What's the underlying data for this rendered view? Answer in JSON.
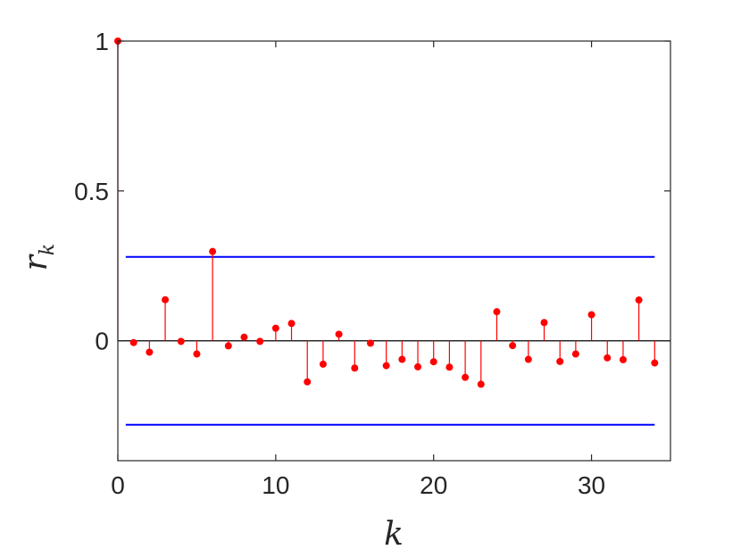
{
  "chart_data": {
    "type": "stem",
    "title": "",
    "xlabel": "k",
    "ylabel_base": "r",
    "ylabel_sub": "k",
    "xlim": [
      0,
      35
    ],
    "ylim": [
      -0.4,
      1.0
    ],
    "xticks": [
      0,
      10,
      20,
      30
    ],
    "xtick_labels": [
      "0",
      "10",
      "20",
      "30"
    ],
    "yticks": [
      0,
      0.5,
      1
    ],
    "ytick_labels": [
      "0",
      "0.5",
      "1"
    ],
    "grid": false,
    "series": [
      {
        "x": [
          0,
          1,
          2,
          3,
          4,
          5,
          6,
          7,
          8,
          9,
          10,
          11,
          12,
          13,
          14,
          15,
          16,
          17,
          18,
          19,
          20,
          21,
          22,
          23,
          24,
          25,
          26,
          27,
          28,
          29,
          30,
          31,
          32,
          33,
          34
        ],
        "values": [
          1.0,
          -0.006,
          -0.038,
          0.137,
          -0.002,
          -0.044,
          0.298,
          -0.017,
          0.012,
          -0.002,
          0.042,
          0.058,
          -0.137,
          -0.078,
          0.022,
          -0.091,
          -0.008,
          -0.083,
          -0.062,
          -0.087,
          -0.07,
          -0.088,
          -0.122,
          -0.145,
          0.097,
          -0.016,
          -0.062,
          0.061,
          -0.069,
          -0.044,
          0.087,
          -0.057,
          -0.063,
          0.136,
          -0.074
        ],
        "color": "#ff0000"
      }
    ],
    "reference_lines": [
      {
        "y": 0.28,
        "x_range": [
          0.5,
          34
        ],
        "color": "#0000ff"
      },
      {
        "y": -0.28,
        "x_range": [
          0.5,
          34
        ],
        "color": "#0000ff"
      }
    ],
    "baseline": {
      "y": 0,
      "color": "#000000"
    }
  }
}
